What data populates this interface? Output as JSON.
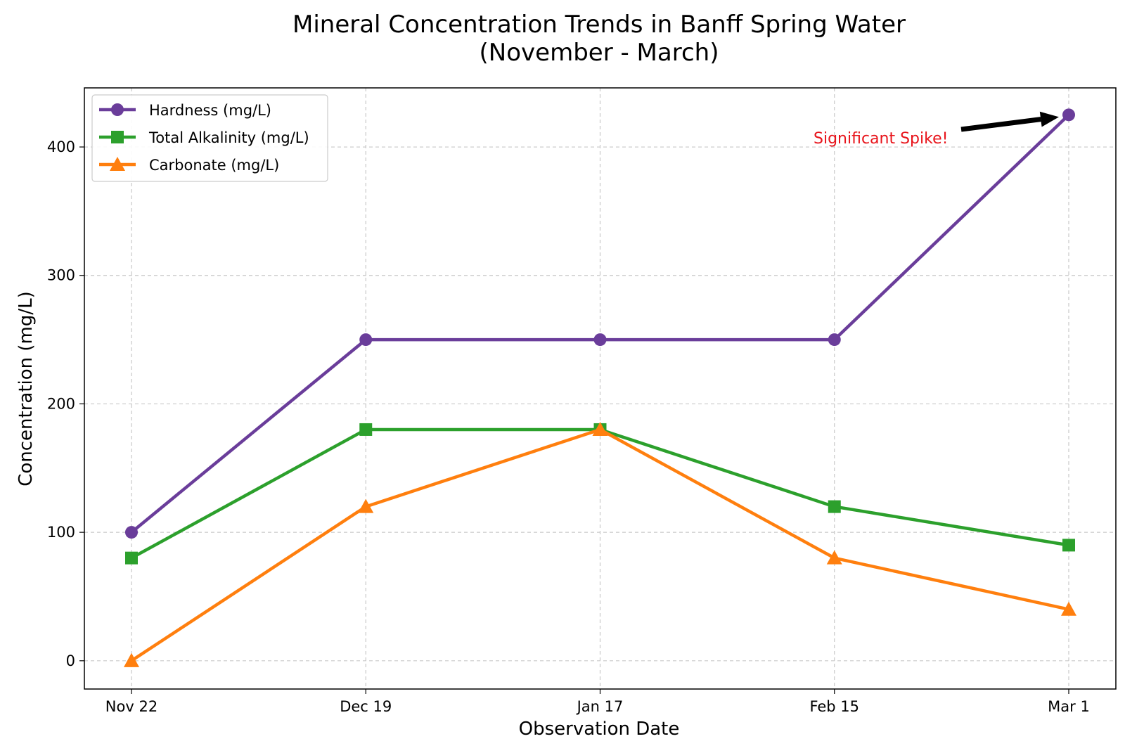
{
  "chart_data": {
    "type": "line",
    "title_line1": "Mineral Concentration Trends in Banff Spring Water",
    "title_line2": "(November - March)",
    "xlabel": "Observation Date",
    "ylabel": "Concentration (mg/L)",
    "categories": [
      "Nov 22",
      "Dec 19",
      "Jan 17",
      "Feb 15",
      "Mar 1"
    ],
    "ylim": [
      -22,
      446
    ],
    "yticks": [
      0,
      100,
      200,
      300,
      400
    ],
    "grid": true,
    "legend_position": "top-left",
    "series": [
      {
        "name": "Hardness (mg/L)",
        "color": "#6a3d9a",
        "marker": "circle",
        "values": [
          100,
          250,
          250,
          250,
          425
        ]
      },
      {
        "name": "Total Alkalinity (mg/L)",
        "color": "#2ca02c",
        "marker": "square",
        "values": [
          80,
          180,
          180,
          120,
          90
        ]
      },
      {
        "name": "Carbonate (mg/L)",
        "color": "#ff7f0e",
        "marker": "triangle",
        "values": [
          0,
          120,
          180,
          80,
          40
        ]
      }
    ],
    "annotation": {
      "text": "Significant Spike!",
      "color": "#e8141b",
      "target_category": "Mar 1",
      "target_value": 425
    }
  }
}
